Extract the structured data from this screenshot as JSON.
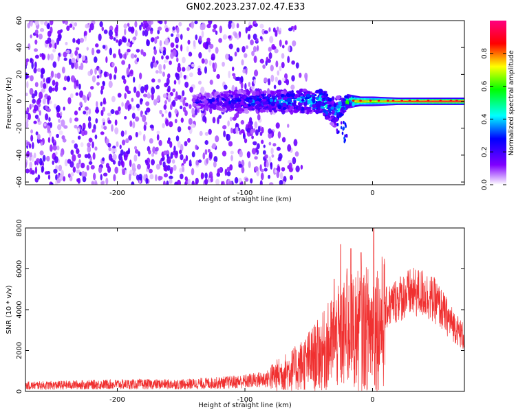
{
  "title": "GN02.2023.237.02.47.E33",
  "chart_data": [
    {
      "type": "heatmap",
      "xlabel": "Height of straight line (km)",
      "ylabel": "Frequency (Hz)",
      "xlim": [
        -272,
        72
      ],
      "ylim": [
        -62,
        60
      ],
      "x_ticks": [
        -200,
        -100,
        0
      ],
      "y_ticks": [
        -60,
        -40,
        -20,
        0,
        20,
        40,
        60
      ],
      "colorbar": {
        "label": "Normalized spectral amplitude",
        "range": [
          0,
          1
        ],
        "ticks": [
          0.0,
          0.2,
          0.4,
          0.6,
          0.8
        ],
        "colors": [
          "#ffffff",
          "#8000ff",
          "#0000ff",
          "#00ffff",
          "#00ff00",
          "#ffff00",
          "#ff0000",
          "#ff0080"
        ]
      },
      "noise_region": {
        "x_range": [
          -272,
          -80
        ],
        "amplitude": 0.15
      },
      "signal_band": [
        {
          "x": -140,
          "f": 0,
          "amp": 0.22,
          "spread": 3
        },
        {
          "x": -100,
          "f": 0,
          "amp": 0.3,
          "spread": 6
        },
        {
          "x": -80,
          "f": 0,
          "amp": 0.35,
          "spread": 5
        },
        {
          "x": -60,
          "f": 0,
          "amp": 0.4,
          "spread": 6
        },
        {
          "x": -40,
          "f": 0,
          "amp": 0.45,
          "spread": 6
        },
        {
          "x": -30,
          "f": -8,
          "amp": 0.35,
          "spread": 8
        },
        {
          "x": -20,
          "f": 0,
          "amp": 0.6,
          "spread": 3
        },
        {
          "x": -10,
          "f": 0,
          "amp": 0.8,
          "spread": 2
        },
        {
          "x": 0,
          "f": 0,
          "amp": 0.7,
          "spread": 2
        },
        {
          "x": 20,
          "f": 0,
          "amp": 0.85,
          "spread": 1.5
        },
        {
          "x": 50,
          "f": 0,
          "amp": 0.9,
          "spread": 1.5
        },
        {
          "x": 72,
          "f": 0,
          "amp": 0.9,
          "spread": 1.5
        }
      ]
    },
    {
      "type": "line",
      "xlabel": "Height of straight line (km)",
      "ylabel": "SNR (10 * v/v)",
      "xlim": [
        -272,
        72
      ],
      "ylim": [
        0,
        8000
      ],
      "x_ticks": [
        -200,
        -100,
        0
      ],
      "y_ticks": [
        0,
        2000,
        4000,
        6000,
        8000
      ],
      "color": "#f03030",
      "envelope": {
        "x": [
          -272,
          -200,
          -150,
          -120,
          -100,
          -80,
          -60,
          -40,
          -30,
          -20,
          -10,
          0,
          10,
          20,
          30,
          40,
          50,
          60,
          72
        ],
        "y": [
          400,
          500,
          500,
          600,
          700,
          900,
          1500,
          2500,
          3300,
          3800,
          4000,
          4200,
          4600,
          5200,
          5500,
          5500,
          5000,
          4000,
          3000
        ]
      },
      "spikes": [
        {
          "x": -25,
          "y": 7200
        },
        {
          "x": -17,
          "y": 7000
        },
        {
          "x": -9,
          "y": 6800
        },
        {
          "x": 1,
          "y": 8000
        },
        {
          "x": -20,
          "y": 6000
        },
        {
          "x": -30,
          "y": 5500
        }
      ]
    }
  ]
}
